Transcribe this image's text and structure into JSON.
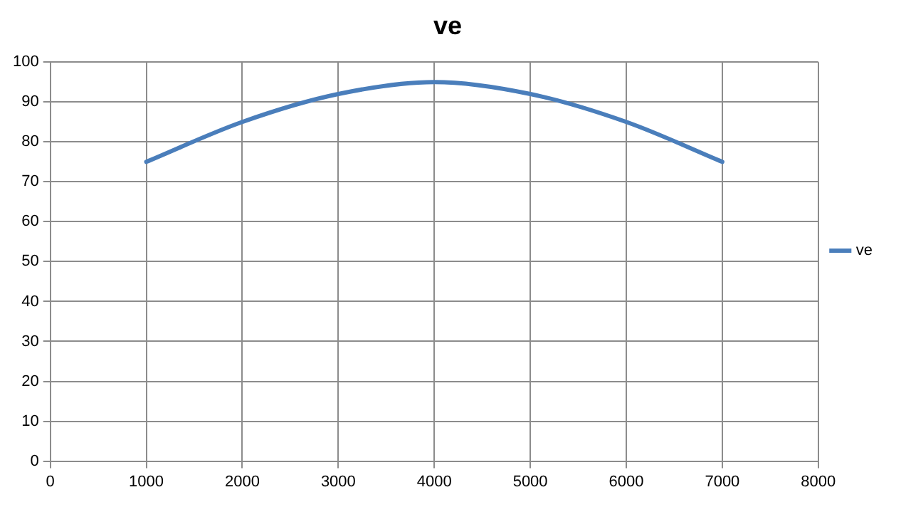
{
  "chart_data": {
    "type": "line",
    "title": "ve",
    "x": [
      1000,
      2000,
      3000,
      4000,
      5000,
      6000,
      7000
    ],
    "series": [
      {
        "name": "ve",
        "color": "#4a7ebb",
        "values": [
          75,
          85,
          92,
          95,
          92,
          85,
          75
        ]
      }
    ],
    "xlim": [
      0,
      8000
    ],
    "xticks": [
      0,
      1000,
      2000,
      3000,
      4000,
      5000,
      6000,
      7000,
      8000
    ],
    "ylim": [
      0,
      100
    ],
    "yticks": [
      0,
      10,
      20,
      30,
      40,
      50,
      60,
      70,
      80,
      90,
      100
    ],
    "grid": true,
    "legend": "right",
    "marker": "none",
    "line_style": "solid"
  }
}
